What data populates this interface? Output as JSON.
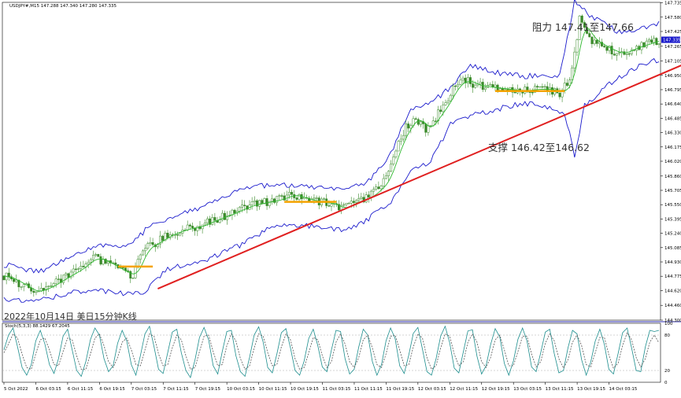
{
  "header": {
    "symbol_line": "USDJPY#,M15  147.288 147.340 147.280 147.335"
  },
  "caption": "2022年10月14日 美日15分钟K线",
  "annotations": {
    "resistance": "阻力 147.41至147.66",
    "support": "支撑 146.42至146.62"
  },
  "colors": {
    "background": "#ffffff",
    "axis": "#000000",
    "frame_line": "#2f2fb0",
    "candle": "#3a8a2a",
    "bands": "#1a1acc",
    "moving_average": "#2eb82e",
    "trendline": "#e02020",
    "support_marker": "#f5a300",
    "price_tag_bg": "#1a1acc",
    "stoch_main": "#1f8f8f",
    "stoch_signal": "#555555"
  },
  "chart_data": [
    {
      "type": "candlestick",
      "title": "USDJPY#,M15",
      "current_price": "147.335",
      "ylim": [
        144.3,
        147.74
      ],
      "y_ticks": [
        "147.735",
        "147.580",
        "147.425",
        "147.265",
        "147.105",
        "146.950",
        "146.795",
        "146.640",
        "146.485",
        "146.330",
        "146.175",
        "146.020",
        "145.860",
        "145.705",
        "145.550",
        "145.395",
        "145.240",
        "145.085",
        "144.930",
        "144.775",
        "144.620",
        "144.460",
        "144.300"
      ],
      "x_ticks": [
        "5 Oct 2022",
        "6 Oct 03:15",
        "6 Oct 11:15",
        "6 Oct 19:15",
        "7 Oct 03:15",
        "7 Oct 11:15",
        "7 Oct 19:15",
        "10 Oct 03:15",
        "10 Oct 11:15",
        "10 Oct 19:15",
        "11 Oct 03:15",
        "11 Oct 11:15",
        "11 Oct 19:15",
        "12 Oct 03:15",
        "12 Oct 11:15",
        "12 Oct 19:15",
        "13 Oct 03:15",
        "13 Oct 11:15",
        "13 Oct 19:15",
        "14 Oct 03:15"
      ],
      "price_path": [
        [
          0,
          144.78
        ],
        [
          6,
          144.7
        ],
        [
          12,
          144.6
        ],
        [
          18,
          144.66
        ],
        [
          24,
          144.76
        ],
        [
          30,
          144.85
        ],
        [
          36,
          144.98
        ],
        [
          40,
          144.94
        ],
        [
          44,
          144.88
        ],
        [
          48,
          144.82
        ],
        [
          52,
          144.78
        ],
        [
          56,
          145.06
        ],
        [
          60,
          145.12
        ],
        [
          66,
          145.22
        ],
        [
          72,
          145.28
        ],
        [
          78,
          145.31
        ],
        [
          84,
          145.38
        ],
        [
          90,
          145.44
        ],
        [
          96,
          145.51
        ],
        [
          100,
          145.55
        ],
        [
          106,
          145.58
        ],
        [
          110,
          145.6
        ],
        [
          116,
          145.66
        ],
        [
          120,
          145.62
        ],
        [
          126,
          145.58
        ],
        [
          132,
          145.56
        ],
        [
          136,
          145.5
        ],
        [
          140,
          145.57
        ],
        [
          146,
          145.62
        ],
        [
          150,
          145.7
        ],
        [
          154,
          145.82
        ],
        [
          158,
          146.15
        ],
        [
          162,
          146.38
        ],
        [
          166,
          146.5
        ],
        [
          170,
          146.35
        ],
        [
          174,
          146.5
        ],
        [
          178,
          146.65
        ],
        [
          182,
          146.85
        ],
        [
          186,
          146.9
        ],
        [
          190,
          146.84
        ],
        [
          196,
          146.82
        ],
        [
          202,
          146.8
        ],
        [
          208,
          146.78
        ],
        [
          214,
          146.8
        ],
        [
          220,
          146.8
        ],
        [
          224,
          146.75
        ],
        [
          228,
          146.9
        ],
        [
          230,
          147.2
        ],
        [
          232,
          147.55
        ],
        [
          236,
          147.35
        ],
        [
          242,
          147.25
        ],
        [
          248,
          147.18
        ],
        [
          254,
          147.25
        ],
        [
          260,
          147.3
        ],
        [
          264,
          147.335
        ]
      ],
      "bollinger_upper": [
        [
          0,
          144.9
        ],
        [
          14,
          144.82
        ],
        [
          28,
          145.0
        ],
        [
          40,
          145.12
        ],
        [
          50,
          145.1
        ],
        [
          58,
          145.3
        ],
        [
          70,
          145.45
        ],
        [
          84,
          145.56
        ],
        [
          96,
          145.74
        ],
        [
          110,
          145.76
        ],
        [
          124,
          145.74
        ],
        [
          136,
          145.7
        ],
        [
          146,
          145.78
        ],
        [
          156,
          146.1
        ],
        [
          164,
          146.6
        ],
        [
          172,
          146.65
        ],
        [
          180,
          146.82
        ],
        [
          188,
          147.05
        ],
        [
          198,
          146.98
        ],
        [
          210,
          146.94
        ],
        [
          224,
          146.95
        ],
        [
          230,
          147.75
        ],
        [
          236,
          147.6
        ],
        [
          248,
          147.42
        ],
        [
          258,
          147.46
        ],
        [
          264,
          147.52
        ]
      ],
      "bollinger_lower": [
        [
          0,
          144.52
        ],
        [
          14,
          144.52
        ],
        [
          28,
          144.6
        ],
        [
          40,
          144.62
        ],
        [
          50,
          144.58
        ],
        [
          56,
          144.6
        ],
        [
          66,
          144.86
        ],
        [
          80,
          144.94
        ],
        [
          96,
          145.12
        ],
        [
          110,
          145.34
        ],
        [
          124,
          145.32
        ],
        [
          136,
          145.27
        ],
        [
          146,
          145.38
        ],
        [
          156,
          145.58
        ],
        [
          164,
          145.92
        ],
        [
          172,
          146.02
        ],
        [
          180,
          146.42
        ],
        [
          188,
          146.52
        ],
        [
          198,
          146.58
        ],
        [
          210,
          146.65
        ],
        [
          222,
          146.58
        ],
        [
          226,
          146.55
        ],
        [
          230,
          146.08
        ],
        [
          234,
          146.62
        ],
        [
          244,
          146.86
        ],
        [
          256,
          147.06
        ],
        [
          264,
          147.12
        ]
      ],
      "horizontal_levels": [
        {
          "value": 144.88,
          "from": 46,
          "to": 60
        },
        {
          "value": 145.58,
          "from": 113,
          "to": 134
        },
        {
          "value": 146.78,
          "from": 198,
          "to": 226
        }
      ],
      "trendline": {
        "from": [
          62,
          144.64
        ],
        "to": [
          264,
          147.02
        ]
      }
    },
    {
      "type": "line",
      "title": "Stoch(5,3,3) 88.1429 67.2045",
      "ylim": [
        0,
        100
      ],
      "y_ticks": [
        "100",
        "80",
        "20",
        "0"
      ],
      "series": [
        {
          "values": [
            55,
            80,
            92,
            60,
            25,
            12,
            30,
            70,
            88,
            65,
            30,
            15,
            40,
            78,
            90,
            55,
            20,
            10,
            35,
            72,
            92,
            80,
            40,
            18,
            28,
            66,
            88,
            70,
            30,
            12,
            45,
            82,
            95,
            60,
            22,
            15,
            50,
            85,
            90,
            50,
            20,
            8,
            38,
            76,
            93,
            72,
            28,
            14,
            52,
            86,
            88,
            45,
            18,
            10,
            42,
            80,
            94,
            68,
            25,
            16,
            48,
            84,
            91,
            58,
            20,
            12,
            36,
            74,
            90,
            62,
            26,
            18,
            55,
            88,
            86,
            40,
            14,
            22,
            60,
            90,
            80,
            35,
            12,
            30,
            70,
            92,
            74,
            28,
            15,
            46,
            83,
            93,
            56,
            18,
            12,
            40,
            78,
            95,
            67,
            24,
            16,
            52,
            87,
            89,
            44,
            14,
            28,
            64,
            91,
            77,
            32,
            12,
            36,
            73,
            92,
            70,
            26,
            18,
            50,
            85,
            90,
            48,
            16,
            20,
            58,
            88,
            82,
            38,
            12,
            34,
            70,
            90,
            64,
            22,
            14,
            48,
            84,
            92,
            58,
            20,
            18,
            60,
            88,
            86,
            88
          ]
        },
        {
          "values": [
            50,
            65,
            82,
            75,
            48,
            25,
            22,
            48,
            72,
            75,
            55,
            30,
            28,
            52,
            75,
            72,
            45,
            22,
            22,
            48,
            75,
            82,
            62,
            35,
            25,
            42,
            68,
            75,
            55,
            30,
            28,
            55,
            82,
            78,
            48,
            28,
            30,
            58,
            80,
            72,
            45,
            22,
            25,
            52,
            78,
            80,
            52,
            28,
            30,
            62,
            82,
            70,
            40,
            22,
            28,
            58,
            82,
            78,
            50,
            28,
            30,
            60,
            82,
            72,
            40,
            22,
            25,
            50,
            76,
            72,
            45,
            25,
            35,
            68,
            82,
            65,
            35,
            25,
            42,
            72,
            80,
            58,
            30,
            25,
            48,
            78,
            80,
            55,
            28,
            30,
            60,
            82,
            75,
            42,
            22,
            28,
            58,
            82,
            78,
            48,
            28,
            35,
            68,
            82,
            68,
            35,
            25,
            42,
            72,
            80,
            55,
            28,
            28,
            52,
            78,
            78,
            48,
            26,
            35,
            66,
            82,
            70,
            40,
            24,
            38,
            68,
            80,
            62,
            30,
            26,
            50,
            76,
            76,
            46,
            24,
            32,
            62,
            84,
            72,
            42,
            26,
            40,
            68,
            80,
            67
          ]
        }
      ]
    }
  ]
}
